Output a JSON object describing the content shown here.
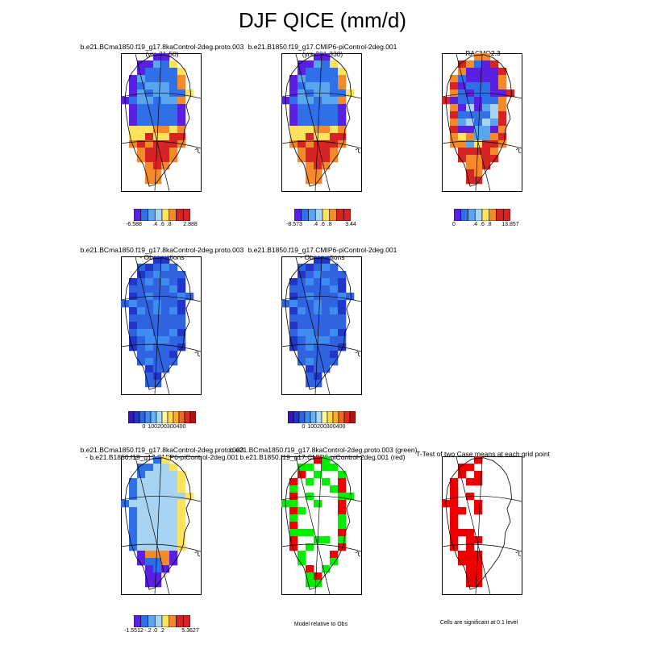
{
  "title": "DJF QICE (mm/d)",
  "panels": [
    {
      "id": "p1",
      "title": [
        "b.e21.BCma1850.f19_g17.8kaControl-2deg.proto.003",
        "(yrs 21-50)"
      ],
      "labelbar": {
        "colors": [
          "#5a1fe0",
          "#2f6fe8",
          "#59a6ef",
          "#a6d4f2",
          "#ffe35c",
          "#f48a2a",
          "#d62424",
          "#d62424"
        ],
        "labels": [
          {
            "text": "-6.588",
            "pos": 0.0
          },
          {
            "text": ".4",
            "pos": 0.375
          },
          {
            "text": ".6",
            "pos": 0.5
          },
          {
            "text": ".8",
            "pos": 0.625
          },
          {
            "text": "2.888",
            "pos": 1.0
          }
        ]
      }
    },
    {
      "id": "p2",
      "title": [
        "b.e21.B1850.f19_g17.CMIP6-piControl-2deg.001",
        "(yrs 301-330)"
      ],
      "labelbar": {
        "colors": [
          "#5a1fe0",
          "#2f6fe8",
          "#59a6ef",
          "#a6d4f2",
          "#ffe35c",
          "#f48a2a",
          "#d62424",
          "#d62424"
        ],
        "labels": [
          {
            "text": "-8.573",
            "pos": 0.0
          },
          {
            "text": ".4",
            "pos": 0.375
          },
          {
            "text": ".6",
            "pos": 0.5
          },
          {
            "text": ".8",
            "pos": 0.625
          },
          {
            "text": "3.44",
            "pos": 1.0
          }
        ]
      }
    },
    {
      "id": "p3",
      "title": [
        "RACMO2.3"
      ],
      "labelbar": {
        "colors": [
          "#5a1fe0",
          "#2f6fe8",
          "#59a6ef",
          "#a6d4f2",
          "#ffe35c",
          "#f48a2a",
          "#d62424",
          "#d62424"
        ],
        "labels": [
          {
            "text": "0",
            "pos": 0.0
          },
          {
            "text": ".4",
            "pos": 0.375
          },
          {
            "text": ".6",
            "pos": 0.5
          },
          {
            "text": ".8",
            "pos": 0.625
          },
          {
            "text": "13.857",
            "pos": 1.0
          }
        ]
      }
    },
    {
      "id": "p4",
      "title": [
        "b.e21.BCma1850.f19_g17.8kaControl-2deg.proto.003",
        "- Observations"
      ],
      "labelbar": {
        "colors": [
          "#3b16b8",
          "#2136c9",
          "#2f63e0",
          "#3f8cf0",
          "#6ab4f5",
          "#a9dcf7",
          "#fff6a0",
          "#ffd84a",
          "#ffaa2a",
          "#f06a1e",
          "#dc2a1c",
          "#b80f12"
        ],
        "labels": [
          {
            "text": "0",
            "pos": 0.23
          },
          {
            "text": "100",
            "pos": 0.36
          },
          {
            "text": "200",
            "pos": 0.5
          },
          {
            "text": "300",
            "pos": 0.64
          },
          {
            "text": "400",
            "pos": 0.78
          }
        ]
      }
    },
    {
      "id": "p5",
      "title": [
        "b.e21.B1850.f19_g17.CMIP6-piControl-2deg.001",
        "- Observations"
      ],
      "labelbar": {
        "colors": [
          "#3b16b8",
          "#2136c9",
          "#2f63e0",
          "#3f8cf0",
          "#6ab4f5",
          "#a9dcf7",
          "#fff6a0",
          "#ffd84a",
          "#ffaa2a",
          "#f06a1e",
          "#dc2a1c",
          "#b80f12"
        ],
        "labels": [
          {
            "text": "0",
            "pos": 0.23
          },
          {
            "text": "100",
            "pos": 0.36
          },
          {
            "text": "200",
            "pos": 0.5
          },
          {
            "text": "300",
            "pos": 0.64
          },
          {
            "text": "400",
            "pos": 0.78
          }
        ]
      }
    },
    {
      "id": "p6",
      "title": [
        "b.e21.BCma1850.f19_g17.8kaControl-2deg.proto.003",
        "- b.e21.B1850.f19_g17.CMIP6-piControl-2deg.001"
      ],
      "labelbar": {
        "colors": [
          "#5a1fe0",
          "#2f6fe8",
          "#59a6ef",
          "#a6d4f2",
          "#ffe35c",
          "#f48a2a",
          "#d62424",
          "#d62424"
        ],
        "labels": [
          {
            "text": "-1.5512",
            "pos": 0.0
          },
          {
            "text": "-.2",
            "pos": 0.25
          },
          {
            "text": ".0",
            "pos": 0.375
          },
          {
            "text": ".2",
            "pos": 0.5
          },
          {
            "text": "5.3627",
            "pos": 1.0
          }
        ]
      }
    },
    {
      "id": "p7",
      "title": [
        "b.e21.BCma1850.f19_g17.8kaControl-2deg.proto.003 (green)",
        "b.e21.B1850.f19_g17.CMIP6-piControl-2deg.001 (red)"
      ],
      "note": "Model relative to Obs"
    },
    {
      "id": "p8",
      "title": [
        "T-Test of two Case means at each grid point"
      ],
      "note": "Cells are significant at 0.1 level"
    }
  ]
}
